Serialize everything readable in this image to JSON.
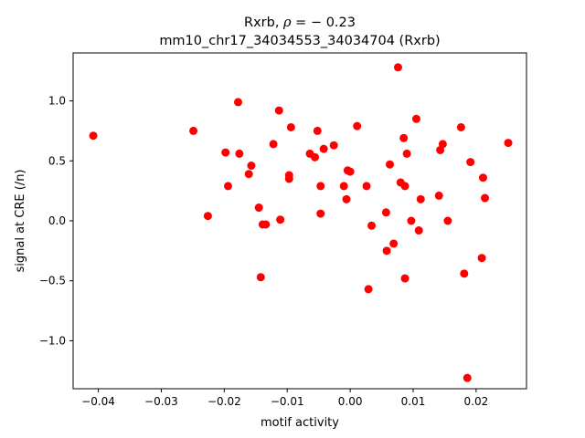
{
  "chart_data": {
    "type": "scatter",
    "title_line1_prefix": "Rxrb, ",
    "title_line1_rho": "ρ",
    "title_line1_suffix": " = − 0.23",
    "title_line2": "mm10_chr17_34034553_34034704 (Rxrb)",
    "xlabel": "motif activity",
    "ylabel": "signal at CRE (/n)",
    "xlim": [
      -0.044,
      0.028
    ],
    "ylim": [
      -1.4,
      1.4
    ],
    "xticks": [
      -0.04,
      -0.03,
      -0.02,
      -0.01,
      0.0,
      0.01,
      0.02
    ],
    "xtick_labels": [
      "−0.04",
      "−0.03",
      "−0.02",
      "−0.01",
      "0.00",
      "0.01",
      "0.02"
    ],
    "yticks": [
      -1.0,
      -0.5,
      0.0,
      0.5,
      1.0
    ],
    "ytick_labels": [
      "−1.0",
      "−0.5",
      "0.0",
      "0.5",
      "1.0"
    ],
    "grid": false,
    "marker_color": "#ff0000",
    "points": [
      {
        "x": -0.0408,
        "y": 0.71
      },
      {
        "x": -0.0249,
        "y": 0.75
      },
      {
        "x": -0.0226,
        "y": 0.04
      },
      {
        "x": -0.0198,
        "y": 0.57
      },
      {
        "x": -0.0194,
        "y": 0.29
      },
      {
        "x": -0.0178,
        "y": 0.99
      },
      {
        "x": -0.0176,
        "y": 0.56
      },
      {
        "x": -0.0161,
        "y": 0.39
      },
      {
        "x": -0.0157,
        "y": 0.46
      },
      {
        "x": -0.0145,
        "y": 0.11
      },
      {
        "x": -0.0142,
        "y": -0.47
      },
      {
        "x": -0.0139,
        "y": -0.03
      },
      {
        "x": -0.0134,
        "y": -0.03
      },
      {
        "x": -0.0122,
        "y": 0.64
      },
      {
        "x": -0.0113,
        "y": 0.92
      },
      {
        "x": -0.0111,
        "y": 0.01
      },
      {
        "x": -0.0097,
        "y": 0.35
      },
      {
        "x": -0.0097,
        "y": 0.38
      },
      {
        "x": -0.0094,
        "y": 0.78
      },
      {
        "x": -0.0064,
        "y": 0.56
      },
      {
        "x": -0.0056,
        "y": 0.53
      },
      {
        "x": -0.0052,
        "y": 0.75
      },
      {
        "x": -0.0047,
        "y": 0.29
      },
      {
        "x": -0.0047,
        "y": 0.06
      },
      {
        "x": -0.0042,
        "y": 0.6
      },
      {
        "x": -0.0026,
        "y": 0.63
      },
      {
        "x": -0.001,
        "y": 0.29
      },
      {
        "x": -0.0006,
        "y": 0.18
      },
      {
        "x": -0.0004,
        "y": 0.42
      },
      {
        "x": 0.0,
        "y": 0.41
      },
      {
        "x": 0.0011,
        "y": 0.79
      },
      {
        "x": 0.0026,
        "y": 0.29
      },
      {
        "x": 0.0029,
        "y": -0.57
      },
      {
        "x": 0.0034,
        "y": -0.04
      },
      {
        "x": 0.0057,
        "y": 0.07
      },
      {
        "x": 0.0058,
        "y": -0.25
      },
      {
        "x": 0.0063,
        "y": 0.47
      },
      {
        "x": 0.0069,
        "y": -0.19
      },
      {
        "x": 0.0076,
        "y": 1.28
      },
      {
        "x": 0.008,
        "y": 0.32
      },
      {
        "x": 0.0085,
        "y": 0.69
      },
      {
        "x": 0.0087,
        "y": 0.29
      },
      {
        "x": 0.0087,
        "y": -0.48
      },
      {
        "x": 0.009,
        "y": 0.56
      },
      {
        "x": 0.0097,
        "y": 0.0
      },
      {
        "x": 0.0105,
        "y": 0.85
      },
      {
        "x": 0.0109,
        "y": -0.08
      },
      {
        "x": 0.0112,
        "y": 0.18
      },
      {
        "x": 0.0141,
        "y": 0.21
      },
      {
        "x": 0.0143,
        "y": 0.59
      },
      {
        "x": 0.0147,
        "y": 0.64
      },
      {
        "x": 0.0155,
        "y": 0.0
      },
      {
        "x": 0.0176,
        "y": 0.78
      },
      {
        "x": 0.0181,
        "y": -0.44
      },
      {
        "x": 0.0186,
        "y": -1.31
      },
      {
        "x": 0.0191,
        "y": 0.49
      },
      {
        "x": 0.0209,
        "y": -0.31
      },
      {
        "x": 0.0211,
        "y": 0.36
      },
      {
        "x": 0.0214,
        "y": 0.19
      },
      {
        "x": 0.0251,
        "y": 0.65
      }
    ]
  }
}
